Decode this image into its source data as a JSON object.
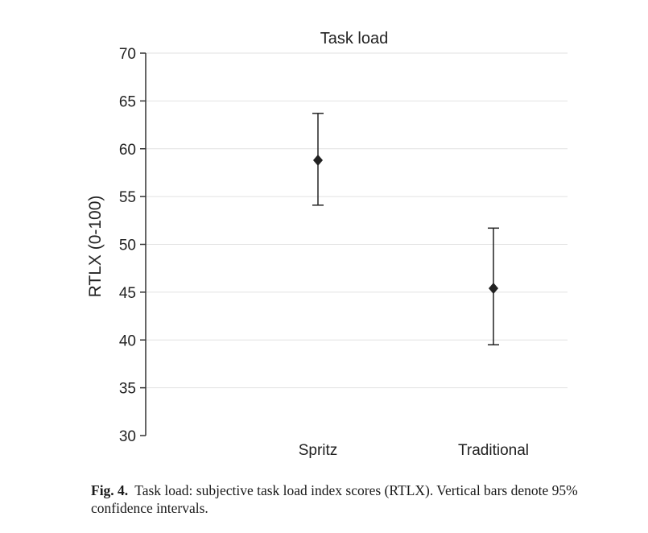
{
  "chart_data": {
    "type": "scatter",
    "title": "Task load",
    "ylabel": "RTLX (0-100)",
    "xlabel": "",
    "categories": [
      "Spritz",
      "Traditional"
    ],
    "ylim": [
      30,
      70
    ],
    "yticks": [
      30,
      35,
      40,
      45,
      50,
      55,
      60,
      65,
      70
    ],
    "grid": true,
    "series": [
      {
        "values": [
          58.8,
          45.4
        ],
        "error_low": [
          54.1,
          39.5
        ],
        "error_high": [
          63.7,
          51.7
        ]
      }
    ]
  },
  "caption": {
    "label": "Fig. 4.",
    "text": "Task load: subjective task load index scores (RTLX). Vertical bars denote 95% confidence intervals."
  }
}
